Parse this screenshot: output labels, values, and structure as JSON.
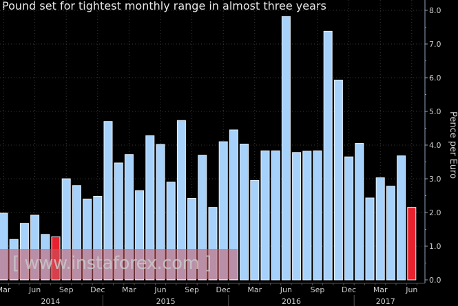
{
  "chart_data": {
    "type": "bar",
    "title": "Pound set for tightest monthly range in almost three years",
    "ylabel": "Pence per Euro",
    "xlabel": "",
    "ylim": [
      0,
      8.0
    ],
    "yticks": [
      "0.0",
      "1.0",
      "2.0",
      "3.0",
      "4.0",
      "5.0",
      "6.0",
      "7.0",
      "8.0"
    ],
    "grid": true,
    "categories": [
      "Mar 2014",
      "Apr 2014",
      "May 2014",
      "Jun 2014",
      "Jul 2014",
      "Aug 2014",
      "Sep 2014",
      "Oct 2014",
      "Nov 2014",
      "Dec 2014",
      "Jan 2015",
      "Feb 2015",
      "Mar 2015",
      "Apr 2015",
      "May 2015",
      "Jun 2015",
      "Jul 2015",
      "Aug 2015",
      "Sep 2015",
      "Oct 2015",
      "Nov 2015",
      "Dec 2015",
      "Jan 2016",
      "Feb 2016",
      "Mar 2016",
      "Apr 2016",
      "May 2016",
      "Jun 2016",
      "Jul 2016",
      "Aug 2016",
      "Sep 2016",
      "Oct 2016",
      "Nov 2016",
      "Dec 2016",
      "Jan 2017",
      "Feb 2017",
      "Mar 2017",
      "Apr 2017",
      "May 2017",
      "Jun 2017"
    ],
    "values": [
      1.98,
      1.2,
      1.68,
      1.92,
      1.35,
      1.28,
      3.0,
      2.8,
      2.4,
      2.48,
      4.7,
      3.47,
      3.72,
      2.65,
      4.28,
      4.02,
      2.9,
      4.73,
      2.42,
      3.7,
      2.15,
      4.1,
      4.45,
      4.03,
      2.95,
      3.83,
      3.83,
      7.82,
      3.78,
      3.82,
      3.83,
      7.38,
      5.93,
      3.65,
      4.05,
      2.43,
      3.03,
      2.78,
      3.68,
      2.15
    ],
    "highlighted": [
      "Aug 2014",
      "Jun 2017"
    ],
    "month_ticks": [
      {
        "index": 0,
        "label": "Mar"
      },
      {
        "index": 3,
        "label": "Jun"
      },
      {
        "index": 6,
        "label": "Sep"
      },
      {
        "index": 9,
        "label": "Dec"
      },
      {
        "index": 12,
        "label": "Mar"
      },
      {
        "index": 15,
        "label": "Jun"
      },
      {
        "index": 18,
        "label": "Sep"
      },
      {
        "index": 21,
        "label": "Dec"
      },
      {
        "index": 24,
        "label": "Mar"
      },
      {
        "index": 27,
        "label": "Jun"
      },
      {
        "index": 30,
        "label": "Sep"
      },
      {
        "index": 33,
        "label": "Dec"
      },
      {
        "index": 36,
        "label": "Mar"
      },
      {
        "index": 39,
        "label": "Jun"
      }
    ],
    "year_labels": [
      {
        "label": "2014",
        "start": 0,
        "end": 9
      },
      {
        "label": "2015",
        "start": 10,
        "end": 21
      },
      {
        "label": "2016",
        "start": 22,
        "end": 33
      },
      {
        "label": "2017",
        "start": 34,
        "end": 39
      }
    ],
    "colors": {
      "bar": "#a6d1fa",
      "highlight": "#e8212e",
      "background": "#000000",
      "axis": "#8fa3bd",
      "text": "#d0d0d0"
    }
  },
  "watermark": "[ www.instaforex.com ]"
}
